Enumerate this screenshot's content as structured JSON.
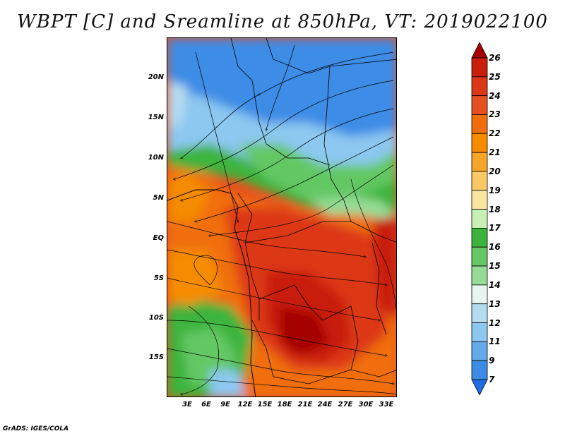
{
  "title": "WBPT [C] and Sreamline at 850hPa, VT: 2019022100",
  "footer": "GrADS: IGES/COLA",
  "map": {
    "lat_labels": [
      "20N",
      "15N",
      "10N",
      "5N",
      "EQ",
      "5S",
      "10S",
      "15S"
    ],
    "lon_labels": [
      "3E",
      "6E",
      "9E",
      "12E",
      "15E",
      "18E",
      "21E",
      "24E",
      "27E",
      "30E",
      "33E"
    ]
  },
  "colorbar": {
    "labels": [
      "26",
      "25",
      "24",
      "23",
      "22",
      "21",
      "20",
      "19",
      "18",
      "17",
      "16",
      "15",
      "14",
      "13",
      "12",
      "11",
      "9",
      "7"
    ],
    "colors": [
      "#a50000",
      "#c81e0a",
      "#dc3714",
      "#e6501e",
      "#f06e0a",
      "#f58c00",
      "#f5a528",
      "#fac864",
      "#fae6a0",
      "#c8f0b4",
      "#3cb43c",
      "#64c864",
      "#96dc96",
      "#e6f5f0",
      "#b4dcf0",
      "#8cc8f0",
      "#64aaeb",
      "#3c8ce6",
      "#1e6ee1"
    ]
  }
}
